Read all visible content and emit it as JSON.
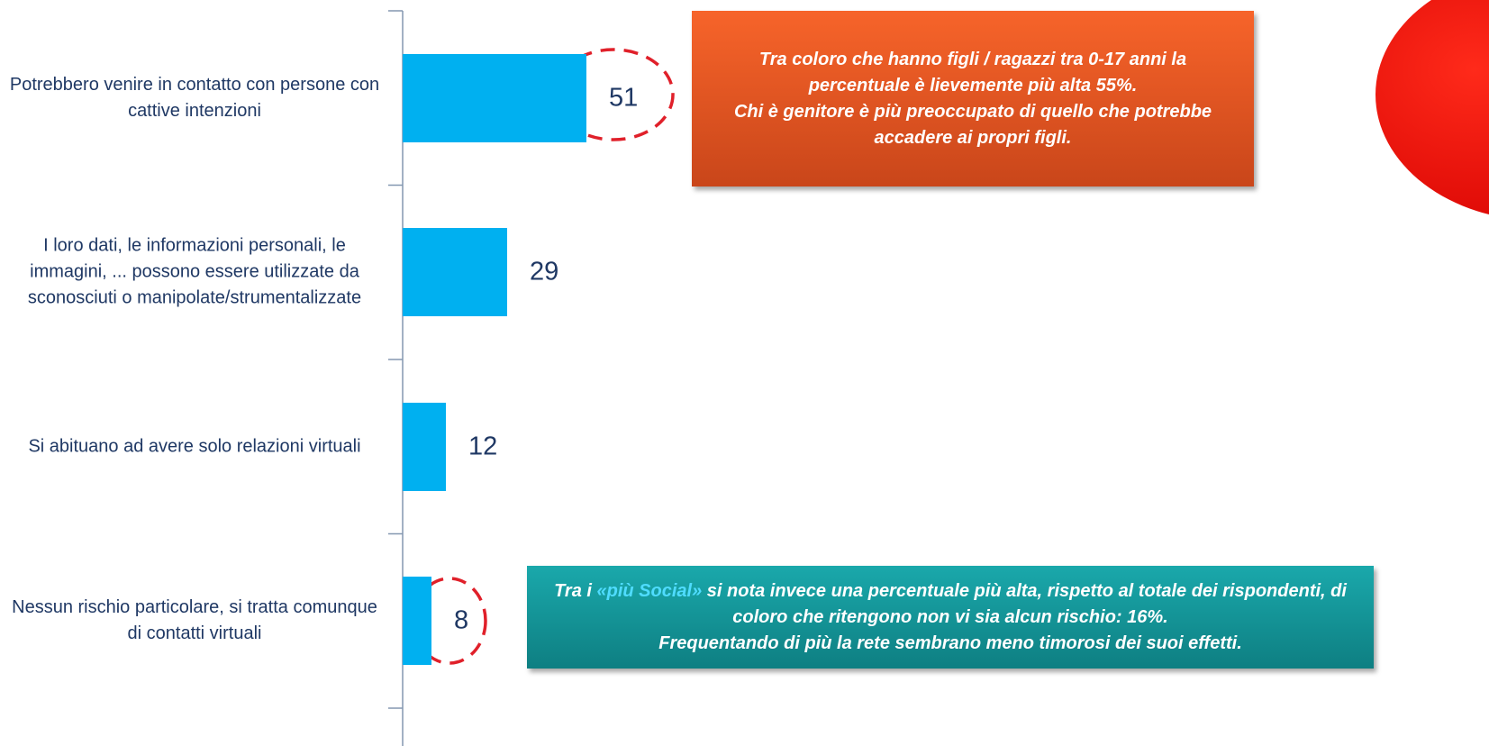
{
  "chart_data": {
    "type": "bar",
    "orientation": "horizontal",
    "categories": [
      "Potrebbero venire in contatto con persone con cattive intenzioni",
      "I loro dati, le informazioni personali, le immagini, ... possono essere utilizzate da sconosciuti o manipolate/strumentalizzate",
      "Si abituano ad avere solo relazioni virtuali",
      "Nessun rischio particolare, si tratta comunque di contatti virtuali"
    ],
    "values": [
      51,
      29,
      12,
      8
    ],
    "color": "#00b0f0",
    "annotations": [
      {
        "paragraphs": [
          [
            "Tra coloro che hanno figli / ragazzi tra 0-17 anni  la percentuale è lievemente più alta 55%."
          ],
          [
            "Chi è genitore è più preoccupato di quello che potrebbe accadere ai propri figli."
          ]
        ]
      },
      {
        "paragraphs": [
          [
            "Tra i ",
            "«più Social»",
            " si nota invece una percentuale più alta, rispetto al totale dei rispondenti, di coloro che ritengono non vi sia  alcun rischio: 16%."
          ],
          [
            "Frequentando di più la rete  sembrano meno timorosi dei suoi effetti."
          ]
        ]
      }
    ]
  }
}
